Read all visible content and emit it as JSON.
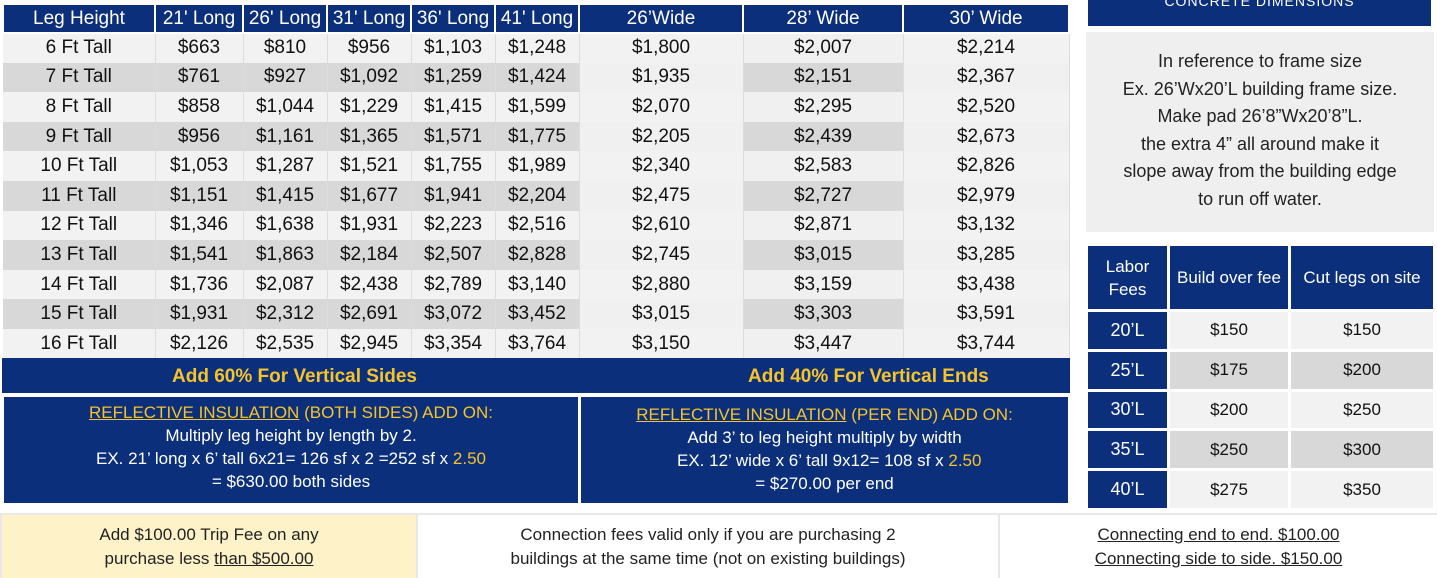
{
  "price_table": {
    "headers": [
      "Leg Height",
      "21' Long",
      "26' Long",
      "31' Long",
      "36' Long",
      "41' Long",
      "26’Wide",
      "28’ Wide",
      "30’ Wide"
    ],
    "rows": [
      [
        "6 Ft Tall",
        "$663",
        "$810",
        "$956",
        "$1,103",
        "$1,248",
        "$1,800",
        "$2,007",
        "$2,214"
      ],
      [
        "7 Ft Tall",
        "$761",
        "$927",
        "$1,092",
        "$1,259",
        "$1,424",
        "$1,935",
        "$2,151",
        "$2,367"
      ],
      [
        "8 Ft Tall",
        "$858",
        "$1,044",
        "$1,229",
        "$1,415",
        "$1,599",
        "$2,070",
        "$2,295",
        "$2,520"
      ],
      [
        "9 Ft Tall",
        "$956",
        "$1,161",
        "$1,365",
        "$1,571",
        "$1,775",
        "$2,205",
        "$2,439",
        "$2,673"
      ],
      [
        "10 Ft Tall",
        "$1,053",
        "$1,287",
        "$1,521",
        "$1,755",
        "$1,989",
        "$2,340",
        "$2,583",
        "$2,826"
      ],
      [
        "11 Ft Tall",
        "$1,151",
        "$1,415",
        "$1,677",
        "$1,941",
        "$2,204",
        "$2,475",
        "$2,727",
        "$2,979"
      ],
      [
        "12 Ft Tall",
        "$1,346",
        "$1,638",
        "$1,931",
        "$2,223",
        "$2,516",
        "$2,610",
        "$2,871",
        "$3,132"
      ],
      [
        "13 Ft Tall",
        "$1,541",
        "$1,863",
        "$2,184",
        "$2,507",
        "$2,828",
        "$2,745",
        "$3,015",
        "$3,285"
      ],
      [
        "14 Ft Tall",
        "$1,736",
        "$2,087",
        "$2,438",
        "$2,789",
        "$3,140",
        "$2,880",
        "$3,159",
        "$3,438"
      ],
      [
        "15 Ft Tall",
        "$1,931",
        "$2,312",
        "$2,691",
        "$3,072",
        "$3,452",
        "$3,015",
        "$3,303",
        "$3,591"
      ],
      [
        "16 Ft Tall",
        "$2,126",
        "$2,535",
        "$2,945",
        "$3,354",
        "$3,764",
        "$3,150",
        "$3,447",
        "$3,744"
      ]
    ]
  },
  "add_bar": {
    "sides": "Add 60% For Vertical Sides",
    "ends": "Add 40% For Vertical Ends"
  },
  "insulation_sides": {
    "title_link": "REFLECTIVE INSULATION",
    "title_rest": " (BOTH SIDES) ADD ON:",
    "line1": "Multiply leg height by length by 2.",
    "line2_pre": "EX. 21’ long x 6’ tall 6x21= 126 sf x 2 =252 sf x ",
    "rate": "2.50",
    "line3": "= $630.00 both sides"
  },
  "insulation_ends": {
    "title_link": "REFLECTIVE INSULATION",
    "title_rest": " (PER END) ADD ON:",
    "line1": "Add 3’ to leg height multiply by width",
    "line2_pre": "EX. 12’ wide x 6’ tall 9x12= 108 sf x ",
    "rate": "2.50",
    "line3": "= $270.00 per end"
  },
  "concrete": {
    "header": "CONCRETE DIMENSIONS",
    "lines": [
      "In reference to frame size",
      "Ex. 26’Wx20’L building frame size.",
      "Make pad 26’8”Wx20’8”L.",
      "the extra 4” all around make it",
      "slope away from the building edge",
      "to run off water."
    ]
  },
  "labor": {
    "headers": [
      "Labor Fees",
      "Build over fee",
      "Cut legs on site"
    ],
    "rows": [
      [
        "20’L",
        "$150",
        "$150"
      ],
      [
        "25’L",
        "$175",
        "$200"
      ],
      [
        "30’L",
        "$200",
        "$250"
      ],
      [
        "35’L",
        "$250",
        "$300"
      ],
      [
        "40’L",
        "$275",
        "$350"
      ]
    ]
  },
  "bottom": {
    "trip_line1": "Add $100.00 Trip Fee on any",
    "trip_line2_pre": "purchase less ",
    "trip_line2_u": "than $500.00",
    "conn_line1": "Connection fees valid only if you are purchasing 2",
    "conn_line2": "buildings at the same time (not on existing buildings)",
    "end_to_end": "Connecting end to end.  $100.00",
    "side_to_side": "Connecting side to side. $150.00"
  },
  "colors": {
    "navy": "#0b2f7a",
    "gold": "#f5c32c",
    "trip_bg": "#fdf2c8"
  }
}
